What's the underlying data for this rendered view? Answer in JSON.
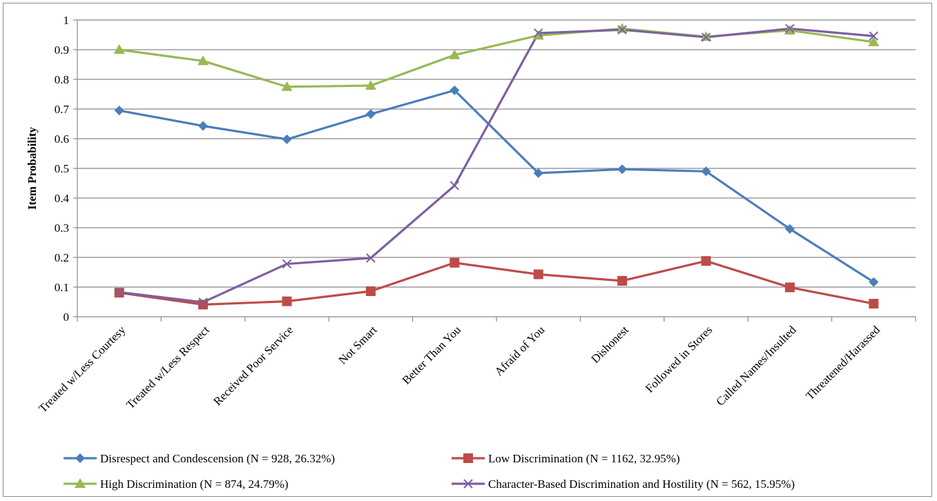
{
  "chart_data": {
    "type": "line",
    "title": "",
    "xlabel": "",
    "ylabel": "Item Probability",
    "ylim": [
      0,
      1
    ],
    "yticks": [
      "0",
      "0.1",
      "0.2",
      "0.3",
      "0.4",
      "0.5",
      "0.6",
      "0.7",
      "0.8",
      "0.9",
      "1"
    ],
    "grid": "horizontal",
    "legend_position": "bottom",
    "categories": [
      "Treated w/Less Courtesy",
      "Treated w/Less Respect",
      "Received Poor Service",
      "Not Smart",
      "Better Than You",
      "Afraid of You",
      "Dishonest",
      "Followed in Stores",
      "Called Names/Insulted",
      "Threatened/Harassed"
    ],
    "series": [
      {
        "name": "Disrespect and Condescension (N = 928, 26.32%)",
        "color": "#4a7ebb",
        "marker": "diamond",
        "values": [
          0.695,
          0.643,
          0.598,
          0.683,
          0.763,
          0.484,
          0.497,
          0.49,
          0.296,
          0.117
        ]
      },
      {
        "name": "Low Discrimination (N = 1162, 32.95%)",
        "color": "#be4b48",
        "marker": "square",
        "values": [
          0.081,
          0.041,
          0.052,
          0.086,
          0.182,
          0.143,
          0.121,
          0.188,
          0.099,
          0.044
        ]
      },
      {
        "name": "High Discrimination (N = 874, 24.79%)",
        "color": "#98b954",
        "marker": "triangle",
        "values": [
          0.9,
          0.862,
          0.775,
          0.779,
          0.882,
          0.948,
          0.971,
          0.944,
          0.965,
          0.926
        ]
      },
      {
        "name": "Character-Based Discrimination and Hostility (N = 562, 15.95%)",
        "color": "#7d5fa0",
        "marker": "x",
        "values": [
          0.083,
          0.049,
          0.178,
          0.198,
          0.442,
          0.956,
          0.967,
          0.942,
          0.971,
          0.946
        ]
      }
    ]
  }
}
